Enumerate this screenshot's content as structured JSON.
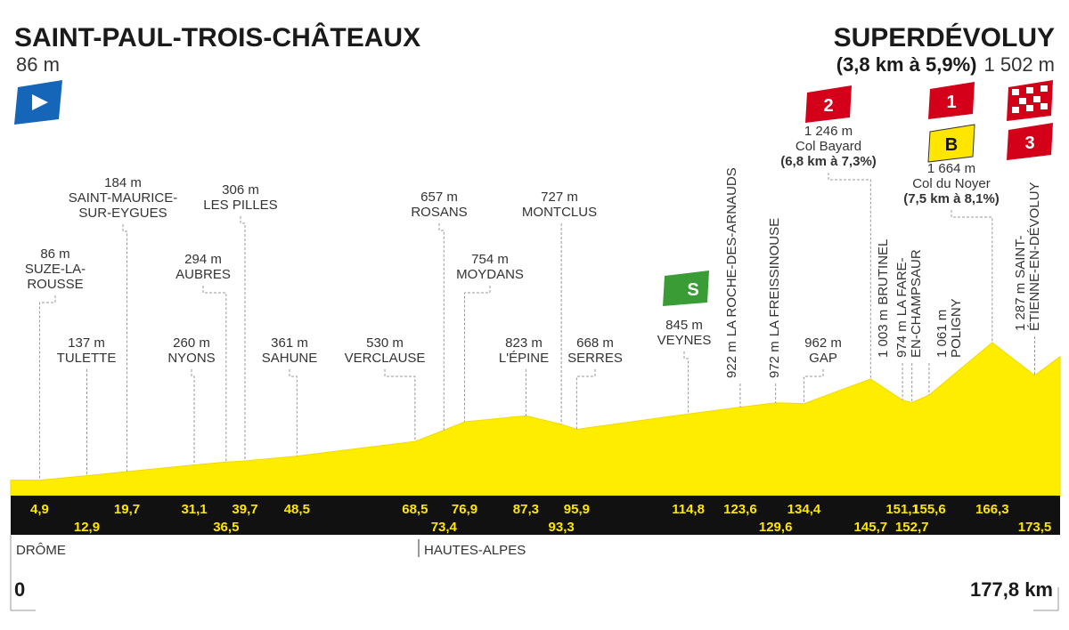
{
  "start": {
    "name": "SAINT-PAUL-TROIS-CHÂTEAUX",
    "altitude": 86,
    "altitude_label": "86 m",
    "km": 0,
    "km_label": "0",
    "region": "DRÔME"
  },
  "finish": {
    "name": "SUPERDÉVOLUY",
    "climb": "(3,8 km à 5,9%)",
    "altitude": 1502,
    "altitude_label": "1 502 m",
    "km": 177.8,
    "km_label": "177,8 km",
    "category": "3"
  },
  "region_change": "HAUTES-ALPES",
  "waypoints": [
    {
      "name": [
        "SUZE-LA-",
        "ROUSSE"
      ],
      "altitude": 86,
      "altitude_label": "86 m",
      "km": 4.9,
      "km_label": "4,9"
    },
    {
      "name": [
        "TULETTE"
      ],
      "altitude": 137,
      "altitude_label": "137 m",
      "km": 12.9,
      "km_label": "12,9"
    },
    {
      "name": [
        "SAINT-MAURICE-",
        "SUR-EYGUES"
      ],
      "altitude": 184,
      "altitude_label": "184 m",
      "km": 19.7,
      "km_label": "19,7"
    },
    {
      "name": [
        "NYONS"
      ],
      "altitude": 260,
      "altitude_label": "260 m",
      "km": 31.1,
      "km_label": "31,1"
    },
    {
      "name": [
        "AUBRES"
      ],
      "altitude": 294,
      "altitude_label": "294 m",
      "km": 36.5,
      "km_label": "36,5"
    },
    {
      "name": [
        "LES PILLES"
      ],
      "altitude": 306,
      "altitude_label": "306 m",
      "km": 39.7,
      "km_label": "39,7"
    },
    {
      "name": [
        "SAHUNE"
      ],
      "altitude": 361,
      "altitude_label": "361 m",
      "km": 48.5,
      "km_label": "48,5"
    },
    {
      "name": [
        "VERCLAUSE"
      ],
      "altitude": 530,
      "altitude_label": "530 m",
      "km": 68.5,
      "km_label": "68,5"
    },
    {
      "name": [
        "ROSANS"
      ],
      "altitude": 657,
      "altitude_label": "657 m",
      "km": 73.4,
      "km_label": "73,4"
    },
    {
      "name": [
        "MOYDANS"
      ],
      "altitude": 754,
      "altitude_label": "754 m",
      "km": 76.9,
      "km_label": "76,9"
    },
    {
      "name": [
        "L'ÉPINE"
      ],
      "altitude": 823,
      "altitude_label": "823 m",
      "km": 87.3,
      "km_label": "87,3"
    },
    {
      "name": [
        "MONTCLUS"
      ],
      "altitude": 727,
      "altitude_label": "727 m",
      "km": 93.3,
      "km_label": "93,3"
    },
    {
      "name": [
        "SERRES"
      ],
      "altitude": 668,
      "altitude_label": "668 m",
      "km": 95.9,
      "km_label": "95,9"
    },
    {
      "name": [
        "VEYNES"
      ],
      "altitude": 845,
      "altitude_label": "845 m",
      "km": 114.8,
      "km_label": "114,8",
      "sprint": "S"
    },
    {
      "name": [
        "LA ROCHE-DES-ARNAUDS"
      ],
      "altitude": 922,
      "altitude_label": "922 m",
      "km": 123.6,
      "km_label": "123,6"
    },
    {
      "name": [
        "LA FREISSINOUSE"
      ],
      "altitude": 972,
      "altitude_label": "972 m",
      "km": 129.6,
      "km_label": "129,6"
    },
    {
      "name": [
        "GAP"
      ],
      "altitude": 962,
      "altitude_label": "962 m",
      "km": 134.4,
      "km_label": "134,4"
    },
    {
      "name": [
        "Col Bayard"
      ],
      "altitude": 1246,
      "altitude_label": "1 246 m",
      "km": 145.7,
      "km_label": "145,7",
      "climb": "(6,8 km à 7,3%)",
      "category": "2"
    },
    {
      "name": [
        "BRUTINEL"
      ],
      "altitude": 1003,
      "altitude_label": "1 003 m",
      "km": 151.1,
      "km_label": "151,1"
    },
    {
      "name": [
        "LA FARE-",
        "EN-CHAMPSAUR"
      ],
      "altitude": 974,
      "altitude_label": "974 m",
      "km": 152.7,
      "km_label": "152,7"
    },
    {
      "name": [
        "POLIGNY"
      ],
      "altitude": 1061,
      "altitude_label": "1 061 m",
      "km": 155.6,
      "km_label": "155,6"
    },
    {
      "name": [
        "Col du Noyer"
      ],
      "altitude": 1664,
      "altitude_label": "1 664 m",
      "km": 166.3,
      "km_label": "166,3",
      "climb": "(7,5 km à 8,1%)",
      "category": "1",
      "bonus": "B"
    },
    {
      "name": [
        "SAINT-",
        "ÉTIENNE-EN-DÉVOLUY"
      ],
      "altitude": 1287,
      "altitude_label": "1 287 m",
      "km": 173.5,
      "km_label": "173,5"
    }
  ]
}
